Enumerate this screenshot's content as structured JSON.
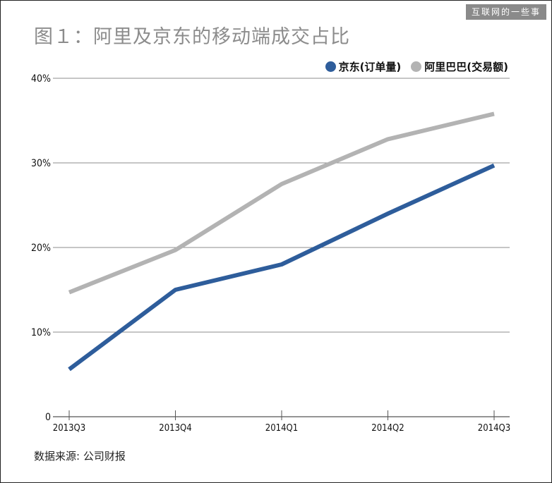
{
  "watermark": "互联网的一些事",
  "title": "图１：阿里及京东的移动端成交占比",
  "source": "数据来源: 公司财报",
  "chart_data": {
    "type": "line",
    "title": "图１：阿里及京东的移动端成交占比",
    "xlabel": "",
    "ylabel": "",
    "categories": [
      "2013Q3",
      "2013Q4",
      "2014Q1",
      "2014Q2",
      "2014Q3"
    ],
    "ylim": [
      0,
      40
    ],
    "yticks": [
      0,
      10,
      20,
      30,
      40
    ],
    "ytick_labels": [
      "0",
      "10%",
      "20%",
      "30%",
      "40%"
    ],
    "grid": true,
    "legend_position": "top-right",
    "series": [
      {
        "name": "京东(订单量)",
        "color": "#2e5d9b",
        "values": [
          5.6,
          15.0,
          18.0,
          24.0,
          29.7
        ]
      },
      {
        "name": "阿里巴巴(交易额)",
        "color": "#b3b3b3",
        "values": [
          14.7,
          19.7,
          27.5,
          32.8,
          35.8
        ]
      }
    ]
  }
}
